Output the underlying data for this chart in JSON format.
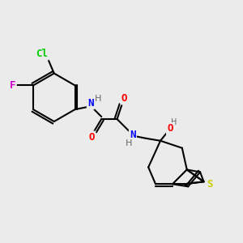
{
  "bg_color": "#ebebeb",
  "atom_colors": {
    "C": "#000000",
    "N": "#0000ff",
    "O": "#ff0000",
    "S": "#cccc00",
    "Cl": "#00cc00",
    "F": "#cc00cc",
    "H": "#666666"
  },
  "bond_color": "#000000",
  "bond_width": 1.5,
  "font_size_atom": 9,
  "figsize": [
    3.0,
    3.0
  ],
  "dpi": 100
}
